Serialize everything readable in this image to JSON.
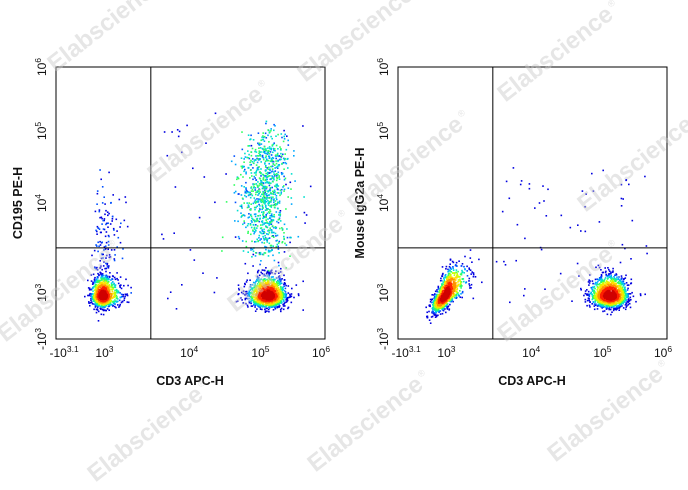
{
  "watermark": "Elabscience",
  "watermark_mark": "®",
  "colors": {
    "density_scale": [
      "#0000e0",
      "#0050ff",
      "#00a8ff",
      "#00e0d0",
      "#30ff60",
      "#c8ff00",
      "#ffe000",
      "#ff9000",
      "#ff2000",
      "#d00000"
    ],
    "frame": "#000000",
    "gate": "#000000"
  },
  "chart_data": [
    {
      "type": "scatter",
      "subtype": "flow-cytometry-density-dot-plot",
      "xlabel": "CD3 APC-H",
      "ylabel": "CD195 PE-H",
      "xscale": "biexponential",
      "yscale": "biexponential",
      "x_ticks": [
        {
          "base": "-10",
          "exp": "3.1"
        },
        {
          "base": "10",
          "exp": "3"
        },
        {
          "base": "10",
          "exp": "4"
        },
        {
          "base": "10",
          "exp": "5"
        },
        {
          "base": "10",
          "exp": "6"
        }
      ],
      "y_ticks": [
        {
          "base": "-10",
          "exp": "3"
        },
        {
          "base": "10",
          "exp": "3"
        },
        {
          "base": "10",
          "exp": "4"
        },
        {
          "base": "10",
          "exp": "5"
        },
        {
          "base": "10",
          "exp": "6"
        }
      ],
      "quadrant_gate": {
        "x_log10": 3.5,
        "y_log10": 3.5
      },
      "populations": [
        {
          "name": "CD3-negative cluster",
          "x_log10": 2.85,
          "y_log10": 2.95,
          "count": 1100
        },
        {
          "name": "CD3+ CD195-",
          "x_log10": 5.05,
          "y_log10": 2.95,
          "count": 1500
        },
        {
          "name": "CD3+ CD195+",
          "x_log10": 5.0,
          "y_log10": 4.2,
          "count": 900
        },
        {
          "name": "CD3-negative spread",
          "x_log10": 2.9,
          "y_log10": 3.6,
          "count": 140
        }
      ],
      "grid": false,
      "legend": "none"
    },
    {
      "type": "scatter",
      "subtype": "flow-cytometry-density-dot-plot",
      "xlabel": "CD3 APC-H",
      "ylabel": "Mouse IgG2a PE-H",
      "xscale": "biexponential",
      "yscale": "biexponential",
      "x_ticks": [
        {
          "base": "-10",
          "exp": "3.1"
        },
        {
          "base": "10",
          "exp": "3"
        },
        {
          "base": "10",
          "exp": "4"
        },
        {
          "base": "10",
          "exp": "5"
        },
        {
          "base": "10",
          "exp": "6"
        }
      ],
      "y_ticks": [
        {
          "base": "-10",
          "exp": "3"
        },
        {
          "base": "10",
          "exp": "3"
        },
        {
          "base": "10",
          "exp": "4"
        },
        {
          "base": "10",
          "exp": "5"
        },
        {
          "base": "10",
          "exp": "6"
        }
      ],
      "quadrant_gate": {
        "x_log10": 3.5,
        "y_log10": 3.5
      },
      "populations": [
        {
          "name": "CD3-negative cluster",
          "x_log10": 2.85,
          "y_log10": 2.95,
          "count": 1100
        },
        {
          "name": "CD3+ cluster",
          "x_log10": 5.05,
          "y_log10": 2.95,
          "count": 1500
        }
      ],
      "grid": false,
      "legend": "none"
    }
  ]
}
